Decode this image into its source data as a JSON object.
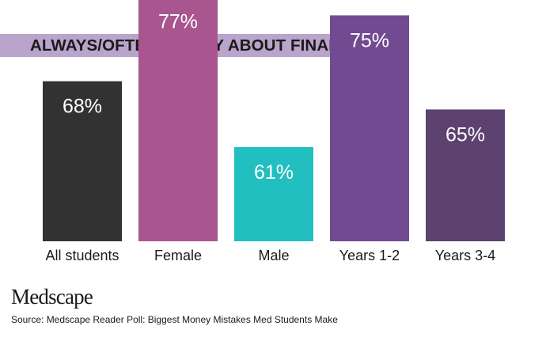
{
  "chart_data": {
    "type": "bar",
    "title": "ALWAYS/OFTEN WORRY ABOUT FINANCES",
    "categories": [
      "All students",
      "Female",
      "Male",
      "Years 1-2",
      "Years 3-4"
    ],
    "values": [
      68,
      77,
      61,
      75,
      65
    ],
    "data_labels": [
      "68%",
      "77%",
      "61%",
      "75%",
      "65%"
    ],
    "unit": "%",
    "colors": [
      "#333232",
      "#a95590",
      "#22bfc0",
      "#724a92",
      "#5d416e"
    ],
    "ylim": [
      0,
      100
    ],
    "grid": false,
    "legend": "none"
  },
  "branding": {
    "logo": "Medscape"
  },
  "source": "Source: Medscape Reader Poll: Biggest Money Mistakes Med Students Make"
}
